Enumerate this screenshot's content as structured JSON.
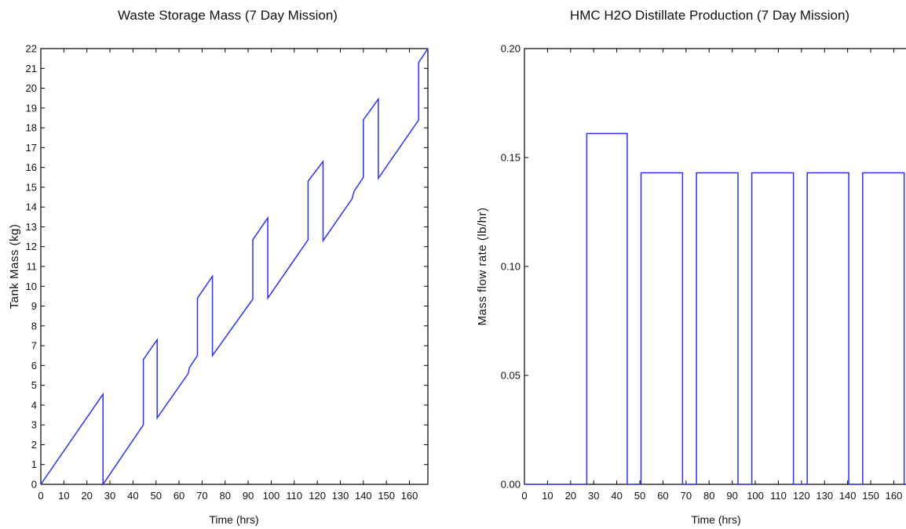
{
  "chart_data": [
    {
      "type": "line",
      "title": "Waste Storage Mass (7 Day Mission)",
      "xlabel": "Time (hrs)",
      "ylabel": "Tank Mass (kg)",
      "xlim": [
        0,
        168
      ],
      "ylim": [
        0,
        22
      ],
      "xticks": [
        0,
        10,
        20,
        30,
        40,
        50,
        60,
        70,
        80,
        90,
        100,
        110,
        120,
        130,
        140,
        150,
        160
      ],
      "yticks": [
        0,
        1,
        2,
        3,
        4,
        5,
        6,
        7,
        8,
        9,
        10,
        11,
        12,
        13,
        14,
        15,
        16,
        17,
        18,
        19,
        20,
        21,
        22
      ],
      "grid": false,
      "color": "#2f2ff0",
      "series": [
        {
          "x": [
            0,
            27,
            27,
            44.5,
            44.5,
            50.5,
            50.5,
            64,
            64.5,
            68,
            68,
            74.5,
            74.5,
            92,
            92,
            98.5,
            98.5,
            116,
            116,
            122.5,
            122.5,
            135,
            136,
            140,
            140,
            146.5,
            146.5,
            164,
            164,
            168
          ],
          "y": [
            0,
            4.55,
            0,
            3.0,
            6.3,
            7.3,
            3.35,
            5.6,
            5.9,
            6.5,
            9.4,
            10.5,
            6.5,
            9.35,
            12.35,
            13.45,
            9.4,
            12.35,
            15.3,
            16.3,
            12.3,
            14.4,
            14.8,
            15.5,
            18.4,
            19.45,
            15.45,
            18.4,
            21.3,
            22
          ]
        }
      ]
    },
    {
      "type": "line",
      "title": "HMC H2O Distillate Production (7 Day Mission)",
      "xlabel": "Time (hrs)",
      "ylabel": "Mass flow rate (lb/hr)",
      "xlim": [
        0,
        168
      ],
      "ylim": [
        0,
        0.2
      ],
      "xticks": [
        0,
        10,
        20,
        30,
        40,
        50,
        60,
        70,
        80,
        90,
        100,
        110,
        120,
        130,
        140,
        150,
        160
      ],
      "yticks": [
        "0.00",
        "0.05",
        "0.10",
        "0.15",
        "0.20"
      ],
      "grid": false,
      "color": "#2f2ff0",
      "series": [
        {
          "x": [
            0,
            27,
            27,
            44.5,
            44.5,
            50.5,
            50.5,
            68.5,
            68.5,
            74.5,
            74.5,
            92.5,
            92.5,
            98.5,
            98.5,
            116.5,
            116.5,
            122.5,
            122.5,
            140.5,
            140.5,
            146.5,
            146.5,
            164.5,
            164.5,
            168
          ],
          "y": [
            0,
            0,
            0.161,
            0.161,
            0,
            0,
            0.143,
            0.143,
            0,
            0,
            0.143,
            0.143,
            0,
            0,
            0.143,
            0.143,
            0,
            0,
            0.143,
            0.143,
            0,
            0,
            0.143,
            0.143,
            0,
            0
          ]
        }
      ]
    }
  ]
}
